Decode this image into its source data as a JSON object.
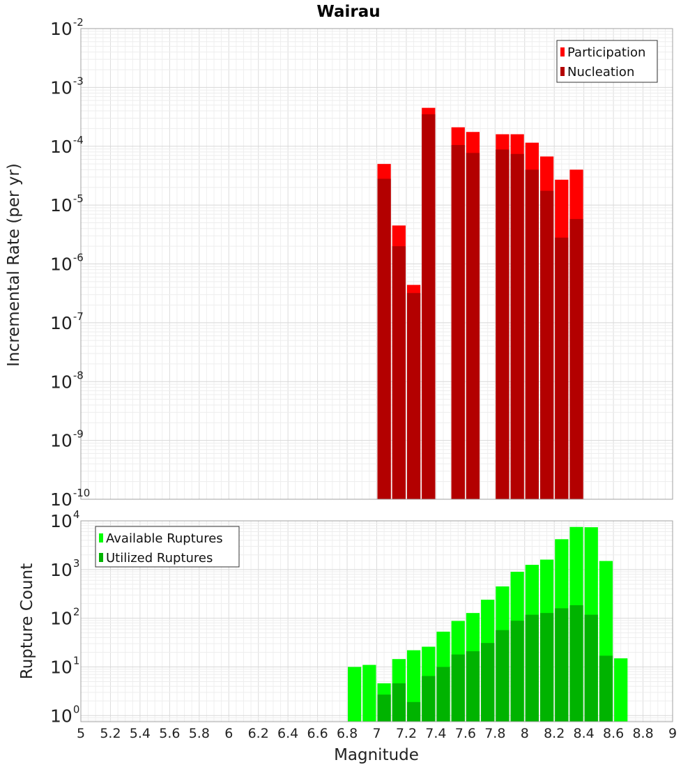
{
  "chart_data": [
    {
      "type": "bar",
      "title": "Wairau",
      "xlabel": "",
      "ylabel": "Incremental Rate (per yr)",
      "yscale": "log",
      "xlim": [
        5,
        9
      ],
      "ylim": [
        1e-10,
        0.01
      ],
      "yticks": [
        {
          "base": "10",
          "exp": "-10",
          "value": 1e-10
        },
        {
          "base": "10",
          "exp": "-9",
          "value": 1e-09
        },
        {
          "base": "10",
          "exp": "-8",
          "value": 1e-08
        },
        {
          "base": "10",
          "exp": "-7",
          "value": 1e-07
        },
        {
          "base": "10",
          "exp": "-6",
          "value": 1e-06
        },
        {
          "base": "10",
          "exp": "-5",
          "value": 1e-05
        },
        {
          "base": "10",
          "exp": "-4",
          "value": 0.0001
        },
        {
          "base": "10",
          "exp": "-3",
          "value": 0.001
        },
        {
          "base": "10",
          "exp": "-2",
          "value": 0.01
        }
      ],
      "grid": true,
      "legend_position": "top-right",
      "bar_width": 0.1,
      "series": [
        {
          "name": "Participation",
          "color": "#ff0000",
          "x": [
            7.05,
            7.15,
            7.25,
            7.35,
            7.55,
            7.65,
            7.85,
            7.95,
            8.05,
            8.15,
            8.25,
            8.35
          ],
          "values": [
            5e-05,
            4.5e-06,
            4.4e-07,
            0.00045,
            0.00021,
            0.000175,
            0.00016,
            0.00016,
            0.000115,
            6.7e-05,
            2.7e-05,
            4e-05
          ]
        },
        {
          "name": "Nucleation",
          "color": "#b30000",
          "x": [
            7.05,
            7.15,
            7.25,
            7.35,
            7.55,
            7.65,
            7.85,
            7.95,
            8.05,
            8.15,
            8.25,
            8.35
          ],
          "values": [
            2.8e-05,
            2e-06,
            3.2e-07,
            0.00035,
            0.000105,
            7.7e-05,
            8.8e-05,
            7.4e-05,
            4e-05,
            1.75e-05,
            2.8e-06,
            5.8e-06
          ]
        }
      ]
    },
    {
      "type": "bar",
      "title": "",
      "xlabel": "Magnitude",
      "ylabel": "Rupture Count",
      "yscale": "log",
      "xlim": [
        5,
        9
      ],
      "ylim": [
        0.75,
        10000
      ],
      "xticks": [
        "5",
        "5.2",
        "5.4",
        "5.6",
        "5.8",
        "6",
        "6.2",
        "6.4",
        "6.6",
        "6.8",
        "7",
        "7.2",
        "7.4",
        "7.6",
        "7.8",
        "8",
        "8.2",
        "8.4",
        "8.6",
        "8.8",
        "9"
      ],
      "yticks": [
        {
          "base": "10",
          "exp": "0",
          "value": 1
        },
        {
          "base": "10",
          "exp": "1",
          "value": 10
        },
        {
          "base": "10",
          "exp": "2",
          "value": 100
        },
        {
          "base": "10",
          "exp": "3",
          "value": 1000
        },
        {
          "base": "10",
          "exp": "4",
          "value": 10000
        }
      ],
      "grid": true,
      "legend_position": "top-left",
      "bar_width": 0.1,
      "series": [
        {
          "name": "Available Ruptures",
          "color": "#00ff00",
          "x": [
            6.85,
            6.95,
            7.05,
            7.15,
            7.25,
            7.35,
            7.45,
            7.55,
            7.65,
            7.75,
            7.85,
            7.95,
            8.05,
            8.15,
            8.25,
            8.35,
            8.45,
            8.55,
            8.65
          ],
          "values": [
            10,
            11,
            4.6,
            14.5,
            22,
            26,
            53,
            88,
            128,
            240,
            450,
            900,
            1250,
            1600,
            4200,
            7500,
            7400,
            1500,
            15
          ]
        },
        {
          "name": "Utilized Ruptures",
          "color": "#00b300",
          "x": [
            7.05,
            7.15,
            7.25,
            7.35,
            7.45,
            7.55,
            7.65,
            7.75,
            7.85,
            7.95,
            8.05,
            8.15,
            8.25,
            8.35,
            8.45,
            8.55
          ],
          "values": [
            2.7,
            4.6,
            1.9,
            6.5,
            10,
            18,
            21,
            31,
            57,
            89,
            118,
            128,
            160,
            185,
            118,
            17
          ]
        }
      ]
    }
  ]
}
